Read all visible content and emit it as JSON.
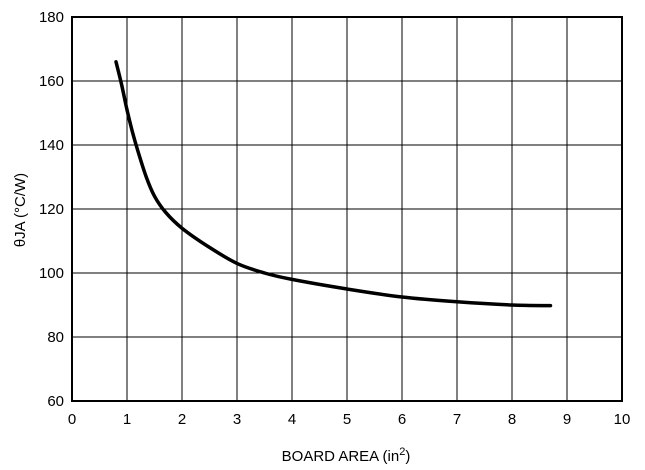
{
  "chart_data": {
    "type": "line",
    "xlabel": "BOARD AREA (in",
    "xlabel_sup": "2",
    "xlabel_suffix": ")",
    "ylabel": "θJA (°C/W)",
    "xlim": [
      0,
      10
    ],
    "ylim": [
      60,
      180
    ],
    "x_ticks": [
      0,
      1,
      2,
      3,
      4,
      5,
      6,
      7,
      8,
      9,
      10
    ],
    "y_ticks": [
      60,
      80,
      100,
      120,
      140,
      160,
      180
    ],
    "grid": true,
    "series": [
      {
        "x": [
          0.8,
          0.9,
          1.0,
          1.1,
          1.2,
          1.35,
          1.5,
          1.7,
          2.0,
          2.5,
          3.0,
          3.5,
          4.0,
          5.0,
          6.0,
          7.0,
          8.0,
          8.7
        ],
        "y": [
          166,
          159,
          151,
          144,
          138,
          130,
          124,
          119,
          114,
          108,
          103,
          100,
          98,
          95,
          92.5,
          91,
          90,
          89.8
        ],
        "color": "#000000"
      }
    ]
  }
}
